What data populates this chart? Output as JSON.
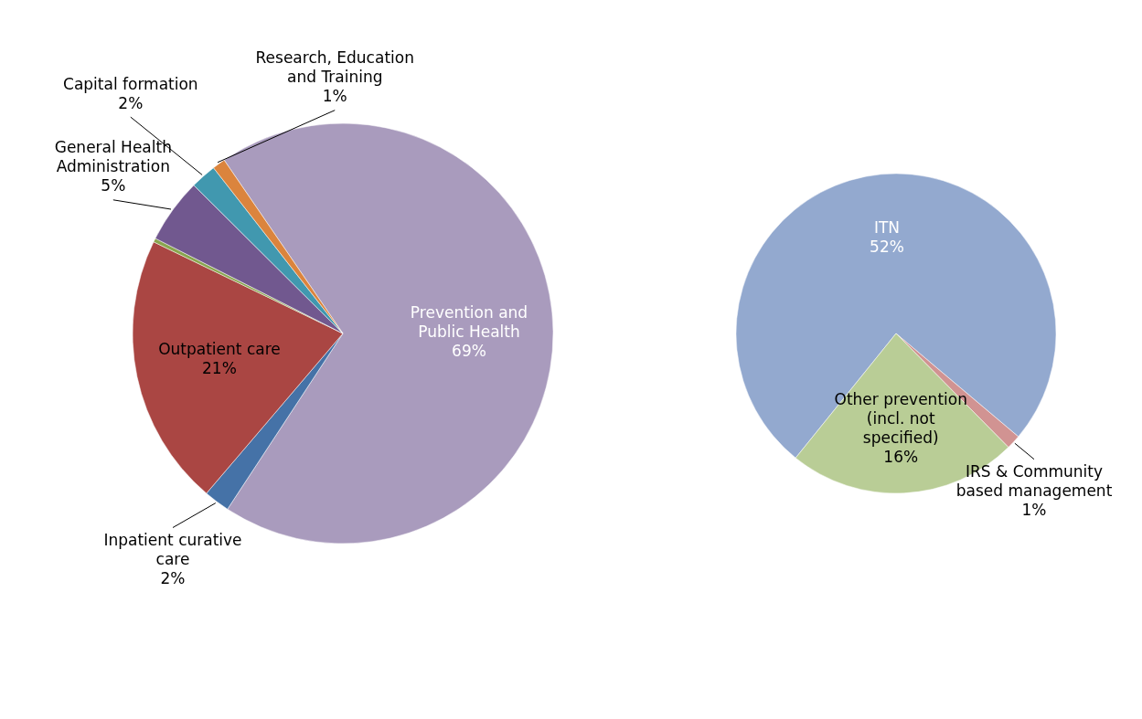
{
  "chart_data": [
    {
      "type": "pie",
      "categories": [
        "Prevention and Public Health",
        "Inpatient curative care",
        "Outpatient care",
        null,
        "General Health Administration",
        "Capital formation",
        "Research, Education and Training"
      ],
      "values": [
        69,
        2,
        21,
        0.3,
        5,
        2,
        1
      ],
      "value_labels": [
        "69%",
        "2%",
        "21%",
        null,
        "5%",
        "2%",
        "1%"
      ],
      "colors": [
        "#a99bbd",
        "#4572a7",
        "#aa4643",
        "#89a54e",
        "#71588f",
        "#4198af",
        "#db843d"
      ]
    },
    {
      "type": "pie",
      "categories": [
        "ITN",
        "IRS & Community based management",
        "Other prevention (incl. not specified)"
      ],
      "values": [
        52,
        1,
        16
      ],
      "value_labels": [
        "52%",
        "1%",
        "16%"
      ],
      "colors": [
        "#93a9cf",
        "#d19392",
        "#b9cd96"
      ]
    }
  ]
}
